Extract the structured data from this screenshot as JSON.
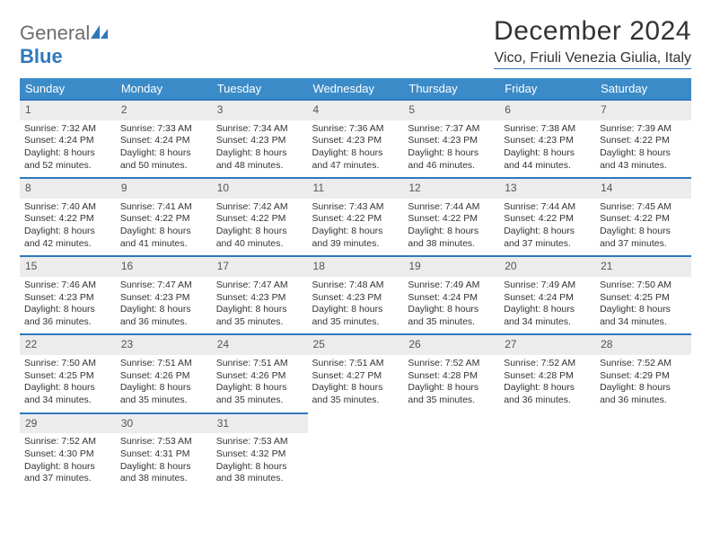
{
  "brand": {
    "word1": "General",
    "word2": "Blue",
    "color1": "#6d6d6d",
    "color2": "#2f78bd"
  },
  "title": "December 2024",
  "location": "Vico, Friuli Venezia Giulia, Italy",
  "colors": {
    "header_bg": "#3b8bc8",
    "header_text": "#ffffff",
    "row_border": "#2f78bd",
    "daynum_bg": "#ececec",
    "page_bg": "#ffffff"
  },
  "day_headers": [
    "Sunday",
    "Monday",
    "Tuesday",
    "Wednesday",
    "Thursday",
    "Friday",
    "Saturday"
  ],
  "weeks": [
    [
      {
        "n": "1",
        "sr": "7:32 AM",
        "ss": "4:24 PM",
        "dh": "8",
        "dm": "52"
      },
      {
        "n": "2",
        "sr": "7:33 AM",
        "ss": "4:24 PM",
        "dh": "8",
        "dm": "50"
      },
      {
        "n": "3",
        "sr": "7:34 AM",
        "ss": "4:23 PM",
        "dh": "8",
        "dm": "48"
      },
      {
        "n": "4",
        "sr": "7:36 AM",
        "ss": "4:23 PM",
        "dh": "8",
        "dm": "47"
      },
      {
        "n": "5",
        "sr": "7:37 AM",
        "ss": "4:23 PM",
        "dh": "8",
        "dm": "46"
      },
      {
        "n": "6",
        "sr": "7:38 AM",
        "ss": "4:23 PM",
        "dh": "8",
        "dm": "44"
      },
      {
        "n": "7",
        "sr": "7:39 AM",
        "ss": "4:22 PM",
        "dh": "8",
        "dm": "43"
      }
    ],
    [
      {
        "n": "8",
        "sr": "7:40 AM",
        "ss": "4:22 PM",
        "dh": "8",
        "dm": "42"
      },
      {
        "n": "9",
        "sr": "7:41 AM",
        "ss": "4:22 PM",
        "dh": "8",
        "dm": "41"
      },
      {
        "n": "10",
        "sr": "7:42 AM",
        "ss": "4:22 PM",
        "dh": "8",
        "dm": "40"
      },
      {
        "n": "11",
        "sr": "7:43 AM",
        "ss": "4:22 PM",
        "dh": "8",
        "dm": "39"
      },
      {
        "n": "12",
        "sr": "7:44 AM",
        "ss": "4:22 PM",
        "dh": "8",
        "dm": "38"
      },
      {
        "n": "13",
        "sr": "7:44 AM",
        "ss": "4:22 PM",
        "dh": "8",
        "dm": "37"
      },
      {
        "n": "14",
        "sr": "7:45 AM",
        "ss": "4:22 PM",
        "dh": "8",
        "dm": "37"
      }
    ],
    [
      {
        "n": "15",
        "sr": "7:46 AM",
        "ss": "4:23 PM",
        "dh": "8",
        "dm": "36"
      },
      {
        "n": "16",
        "sr": "7:47 AM",
        "ss": "4:23 PM",
        "dh": "8",
        "dm": "36"
      },
      {
        "n": "17",
        "sr": "7:47 AM",
        "ss": "4:23 PM",
        "dh": "8",
        "dm": "35"
      },
      {
        "n": "18",
        "sr": "7:48 AM",
        "ss": "4:23 PM",
        "dh": "8",
        "dm": "35"
      },
      {
        "n": "19",
        "sr": "7:49 AM",
        "ss": "4:24 PM",
        "dh": "8",
        "dm": "35"
      },
      {
        "n": "20",
        "sr": "7:49 AM",
        "ss": "4:24 PM",
        "dh": "8",
        "dm": "34"
      },
      {
        "n": "21",
        "sr": "7:50 AM",
        "ss": "4:25 PM",
        "dh": "8",
        "dm": "34"
      }
    ],
    [
      {
        "n": "22",
        "sr": "7:50 AM",
        "ss": "4:25 PM",
        "dh": "8",
        "dm": "34"
      },
      {
        "n": "23",
        "sr": "7:51 AM",
        "ss": "4:26 PM",
        "dh": "8",
        "dm": "35"
      },
      {
        "n": "24",
        "sr": "7:51 AM",
        "ss": "4:26 PM",
        "dh": "8",
        "dm": "35"
      },
      {
        "n": "25",
        "sr": "7:51 AM",
        "ss": "4:27 PM",
        "dh": "8",
        "dm": "35"
      },
      {
        "n": "26",
        "sr": "7:52 AM",
        "ss": "4:28 PM",
        "dh": "8",
        "dm": "35"
      },
      {
        "n": "27",
        "sr": "7:52 AM",
        "ss": "4:28 PM",
        "dh": "8",
        "dm": "36"
      },
      {
        "n": "28",
        "sr": "7:52 AM",
        "ss": "4:29 PM",
        "dh": "8",
        "dm": "36"
      }
    ],
    [
      {
        "n": "29",
        "sr": "7:52 AM",
        "ss": "4:30 PM",
        "dh": "8",
        "dm": "37"
      },
      {
        "n": "30",
        "sr": "7:53 AM",
        "ss": "4:31 PM",
        "dh": "8",
        "dm": "38"
      },
      {
        "n": "31",
        "sr": "7:53 AM",
        "ss": "4:32 PM",
        "dh": "8",
        "dm": "38"
      },
      null,
      null,
      null,
      null
    ]
  ],
  "labels": {
    "sunrise_prefix": "Sunrise: ",
    "sunset_prefix": "Sunset: ",
    "daylight_prefix": "Daylight: ",
    "hours_word": " hours",
    "and_word": "and ",
    "minutes_word": " minutes."
  }
}
